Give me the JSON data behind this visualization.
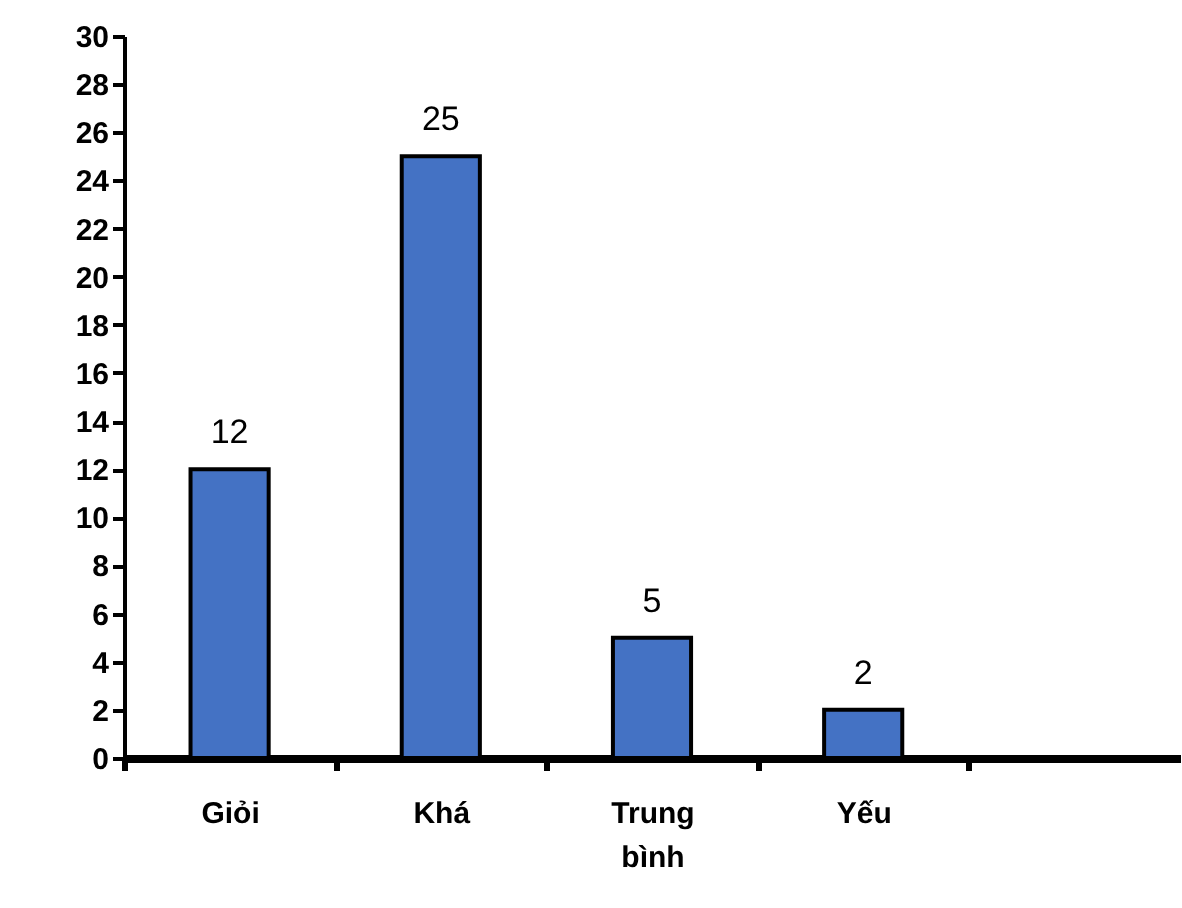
{
  "chart_data": {
    "type": "bar",
    "categories": [
      "Giỏi",
      "Khá",
      "Trung bình",
      "Yếu",
      null
    ],
    "values": [
      12,
      25,
      5,
      2,
      null
    ],
    "color": "#4472c4",
    "ylim": [
      0,
      30
    ],
    "yticks": [
      0,
      2,
      4,
      6,
      8,
      10,
      12,
      14,
      16,
      18,
      20,
      22,
      24,
      26,
      28,
      30
    ],
    "data_labels": true,
    "grid": false
  }
}
